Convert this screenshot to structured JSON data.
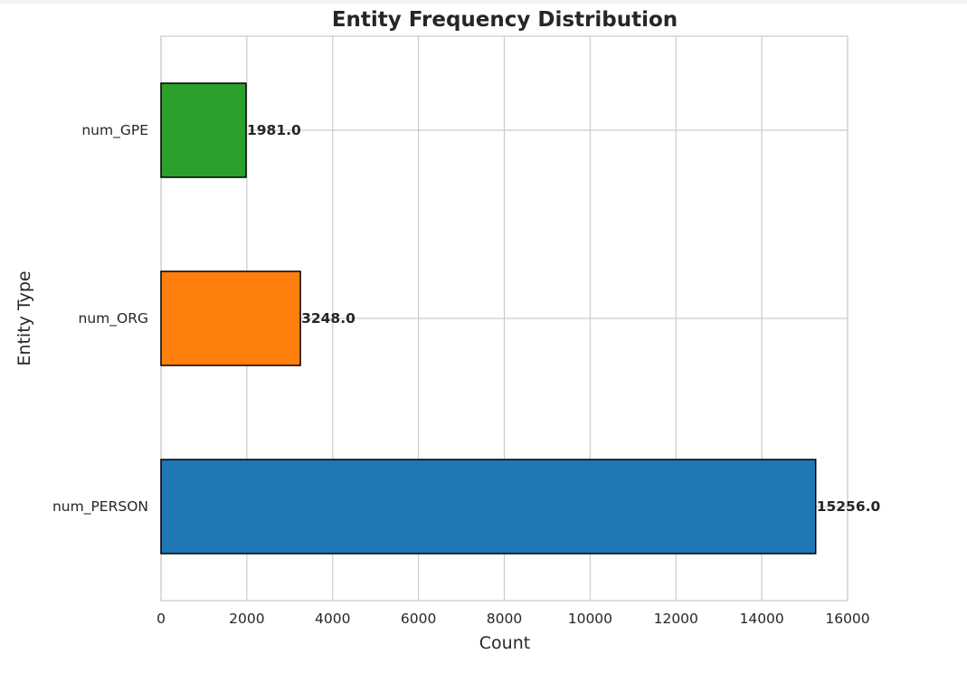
{
  "chart_data": {
    "type": "bar",
    "orientation": "horizontal",
    "title": "Entity Frequency Distribution",
    "xlabel": "Count",
    "ylabel": "Entity Type",
    "categories": [
      "num_PERSON",
      "num_ORG",
      "num_GPE"
    ],
    "values": [
      15256.0,
      3248.0,
      1981.0
    ],
    "data_labels": [
      "15256.0",
      "3248.0",
      "1981.0"
    ],
    "colors": [
      "#1f77b4",
      "#ff7f0e",
      "#2ca02c"
    ],
    "xlim": [
      0,
      16000
    ],
    "x_ticks": [
      0,
      2000,
      4000,
      6000,
      8000,
      10000,
      12000,
      14000,
      16000
    ],
    "x_tick_labels": [
      "0",
      "2000",
      "4000",
      "6000",
      "8000",
      "10000",
      "12000",
      "14000",
      "16000"
    ],
    "grid": true,
    "legend": "none"
  }
}
